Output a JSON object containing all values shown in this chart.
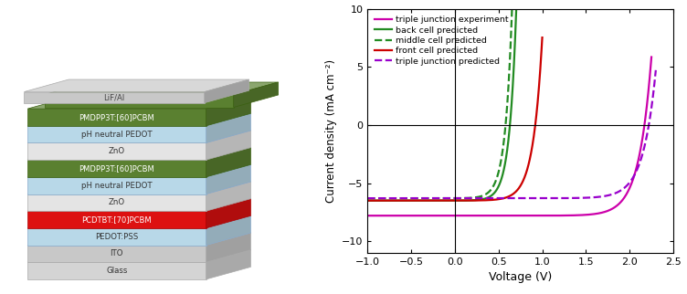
{
  "layers": [
    {
      "label": "Glass",
      "color": "#d4d4d4",
      "edgecolor": "#aaaaaa",
      "text_color": "#333333"
    },
    {
      "label": "ITO",
      "color": "#c8c8c8",
      "edgecolor": "#aaaaaa",
      "text_color": "#333333"
    },
    {
      "label": "PEDOT:PSS",
      "color": "#b8d8e8",
      "edgecolor": "#88aacc",
      "text_color": "#333333"
    },
    {
      "label": "PCDTBT:[70]PCBM",
      "color": "#dd1111",
      "edgecolor": "#aa0000",
      "text_color": "#ffffff"
    },
    {
      "label": "ZnO",
      "color": "#e4e4e4",
      "edgecolor": "#aaaaaa",
      "text_color": "#333333"
    },
    {
      "label": "pH neutral PEDOT",
      "color": "#b8d8e8",
      "edgecolor": "#88aacc",
      "text_color": "#333333"
    },
    {
      "label": "PMDPP3T:[60]PCBM",
      "color": "#5a8030",
      "edgecolor": "#3a6010",
      "text_color": "#ffffff"
    },
    {
      "label": "ZnO",
      "color": "#e4e4e4",
      "edgecolor": "#aaaaaa",
      "text_color": "#333333"
    },
    {
      "label": "pH neutral PEDOT",
      "color": "#b8d8e8",
      "edgecolor": "#88aacc",
      "text_color": "#333333"
    },
    {
      "label": "PMDPP3T:[60]PCBM",
      "color": "#5a8030",
      "edgecolor": "#3a6010",
      "text_color": "#ffffff"
    },
    {
      "label": "LiF/Al",
      "color": "#d4d4d4",
      "edgecolor": "#aaaaaa",
      "text_color": "#333333"
    }
  ],
  "green_cap_color": "#5a8030",
  "green_cap_edge": "#3a6010",
  "gray_cap_color": "#c8c8c8",
  "gray_cap_edge": "#aaaaaa",
  "plot_xlim": [
    -1.0,
    2.5
  ],
  "plot_ylim": [
    -11,
    10
  ],
  "plot_yticks": [
    -10,
    -5,
    0,
    5,
    10
  ],
  "plot_xticks": [
    -1.0,
    -0.5,
    0.0,
    0.5,
    1.0,
    1.5,
    2.0,
    2.5
  ],
  "xlabel": "Voltage (V)",
  "ylabel": "Current density (mA cm⁻²)",
  "curves": [
    {
      "name": "triple junction experiment",
      "color": "#cc00aa",
      "linestyle": "-",
      "linewidth": 1.6,
      "Jsc": -7.8,
      "Voc": 2.17,
      "n_ideality": 5.5
    },
    {
      "name": "back cell predicted",
      "color": "#228b22",
      "linestyle": "-",
      "linewidth": 1.6,
      "Jsc": -6.5,
      "Voc": 0.63,
      "n_ideality": 3.0
    },
    {
      "name": "middle cell predicted",
      "color": "#228b22",
      "linestyle": "--",
      "linewidth": 1.6,
      "Jsc": -6.3,
      "Voc": 0.58,
      "n_ideality": 3.0
    },
    {
      "name": "front cell predicted",
      "color": "#cc0000",
      "linestyle": "-",
      "linewidth": 1.6,
      "Jsc": -6.5,
      "Voc": 0.92,
      "n_ideality": 4.0
    },
    {
      "name": "triple junction predicted",
      "color": "#9900cc",
      "linestyle": "--",
      "linewidth": 1.6,
      "Jsc": -6.3,
      "Voc": 2.22,
      "n_ideality": 5.5
    }
  ]
}
